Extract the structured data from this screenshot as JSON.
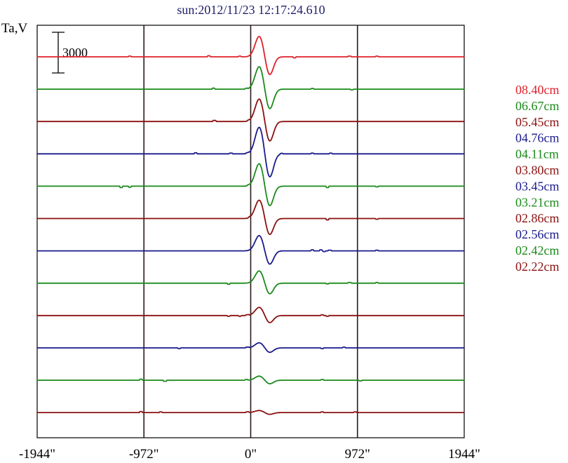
{
  "chart_data": {
    "type": "line",
    "title": "sun:2012/11/23 12:17:24.610",
    "ylabel": "Ta,V",
    "scale_bar_label": "3000",
    "xlim": [
      -1944,
      1944
    ],
    "x_ticks": [
      {
        "value": -1944,
        "label": "-1944\""
      },
      {
        "value": -972,
        "label": "-972\""
      },
      {
        "value": 0,
        "label": "0\""
      },
      {
        "value": 972,
        "label": "972\""
      },
      {
        "value": 1944,
        "label": "1944\""
      }
    ],
    "gridlines_x": [
      -972,
      0,
      972
    ],
    "series": [
      {
        "name": "08.40cm",
        "color": "#e0202a",
        "amp": 1.0,
        "glitches": [
          [
            -1100,
            1
          ],
          [
            -380,
            1.5
          ],
          [
            -100,
            1
          ],
          [
            400,
            -1.5
          ],
          [
            900,
            1
          ],
          [
            1150,
            1
          ]
        ]
      },
      {
        "name": "06.67cm",
        "color": "#1a8a1a",
        "amp": 1.1,
        "glitches": [
          [
            -340,
            1.5
          ],
          [
            -40,
            1
          ],
          [
            560,
            1
          ],
          [
            920,
            -1
          ]
        ]
      },
      {
        "name": "05.45cm",
        "color": "#8b1010",
        "amp": 1.1,
        "glitches": [
          [
            -330,
            1.5
          ],
          [
            -20,
            1
          ]
        ]
      },
      {
        "name": "04.76cm",
        "color": "#1a1a8c",
        "amp": 1.3,
        "glitches": [
          [
            -500,
            1.5
          ],
          [
            -180,
            1
          ],
          [
            -30,
            1
          ],
          [
            280,
            1
          ],
          [
            560,
            1
          ],
          [
            730,
            1
          ]
        ]
      },
      {
        "name": "04.11cm",
        "color": "#1a8a1a",
        "amp": 1.1,
        "glitches": [
          [
            -1180,
            -2
          ],
          [
            -1100,
            -1.5
          ],
          [
            -20,
            1
          ],
          [
            700,
            -2
          ],
          [
            1150,
            -1
          ]
        ]
      },
      {
        "name": "03.80cm",
        "color": "#8b1010",
        "amp": 0.9,
        "glitches": [
          [
            -10,
            1
          ],
          [
            700,
            -2
          ],
          [
            1150,
            -1
          ]
        ]
      },
      {
        "name": "03.45cm",
        "color": "#1a1a8c",
        "amp": 0.75,
        "glitches": [
          [
            560,
            1.5
          ],
          [
            640,
            1.5
          ],
          [
            670,
            -1
          ],
          [
            720,
            1
          ],
          [
            1150,
            1
          ]
        ]
      },
      {
        "name": "03.21cm",
        "color": "#1a8a1a",
        "amp": 0.6,
        "glitches": [
          [
            -200,
            -1.5
          ],
          [
            700,
            -1
          ],
          [
            900,
            1
          ],
          [
            1150,
            1
          ]
        ]
      },
      {
        "name": "02.86cm",
        "color": "#8b1010",
        "amp": 0.4,
        "glitches": [
          [
            -200,
            -1
          ],
          [
            -100,
            -1
          ],
          [
            -30,
            1
          ],
          [
            650,
            1
          ],
          [
            700,
            -1
          ]
        ]
      },
      {
        "name": "02.56cm",
        "color": "#1a1a8c",
        "amp": 0.25,
        "glitches": [
          [
            -650,
            -1
          ],
          [
            -30,
            1
          ],
          [
            650,
            -1
          ],
          [
            850,
            1
          ]
        ]
      },
      {
        "name": "02.42cm",
        "color": "#1a8a1a",
        "amp": 0.2,
        "glitches": [
          [
            -1000,
            1.5
          ],
          [
            -780,
            -1.5
          ],
          [
            -40,
            1
          ],
          [
            650,
            1
          ],
          [
            1000,
            -1
          ]
        ]
      },
      {
        "name": "02.22cm",
        "color": "#8b1010",
        "amp": 0.1,
        "glitches": [
          [
            -1000,
            1.5
          ],
          [
            -820,
            1
          ],
          [
            -30,
            1
          ],
          [
            650,
            1
          ],
          [
            950,
            1
          ]
        ]
      }
    ]
  }
}
